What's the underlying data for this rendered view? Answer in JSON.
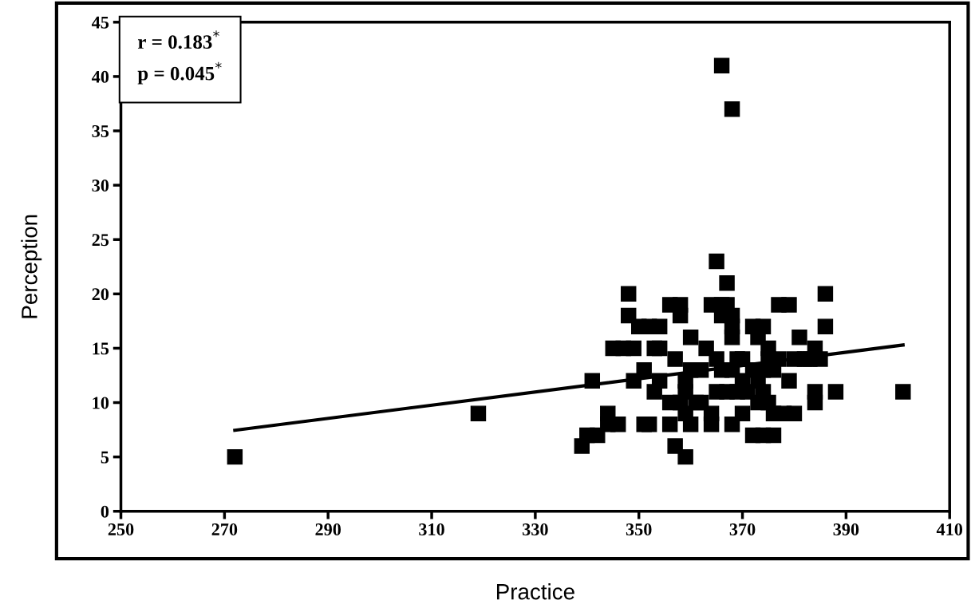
{
  "chart_data": {
    "type": "scatter",
    "xlabel": "Practice",
    "ylabel": "Perception",
    "annotations": [
      "r = 0.183$^{*}$\np = 0.045$^{*}$"
    ],
    "xlim": [
      250,
      410
    ],
    "xticks": [
      250,
      270,
      290,
      310,
      330,
      350,
      370,
      390,
      410
    ],
    "ylim": [
      0,
      45
    ],
    "yticks": [
      0,
      5,
      10,
      15,
      20,
      25,
      30,
      35,
      40,
      45
    ],
    "grid": false,
    "legend": false,
    "marker": "square",
    "series": [
      {
        "color": "#000000",
        "x": [
          272,
          319,
          339,
          340,
          341,
          342,
          344,
          344,
          345,
          346,
          347,
          348,
          348,
          349,
          349,
          350,
          351,
          351,
          352,
          352,
          353,
          353,
          354,
          354,
          354,
          356,
          356,
          356,
          357,
          357,
          358,
          358,
          358,
          359,
          359,
          359,
          359,
          360,
          360,
          360,
          361,
          362,
          362,
          363,
          364,
          364,
          364,
          365,
          365,
          365,
          366,
          366,
          366,
          366,
          367,
          367,
          367,
          368,
          368,
          368,
          368,
          368,
          368,
          369,
          369,
          370,
          370,
          370,
          371,
          372,
          372,
          372,
          373,
          373,
          373,
          374,
          374,
          374,
          374,
          375,
          375,
          375,
          376,
          376,
          376,
          377,
          377,
          378,
          379,
          379,
          380,
          380,
          381,
          382,
          383,
          384,
          384,
          384,
          385,
          386,
          386,
          388,
          401
        ],
        "values": [
          5,
          9,
          6,
          7,
          12,
          7,
          8,
          9,
          15,
          8,
          15,
          20,
          18,
          12,
          15,
          17,
          8,
          13,
          8,
          17,
          11,
          15,
          12,
          17,
          15,
          19,
          10,
          8,
          14,
          6,
          19,
          18,
          10,
          12,
          11,
          9,
          5,
          16,
          13,
          8,
          10,
          13,
          10,
          15,
          19,
          9,
          8,
          23,
          14,
          11,
          41,
          19,
          13,
          18,
          21,
          19,
          11,
          37,
          18,
          16,
          17,
          8,
          13,
          14,
          11,
          12,
          14,
          9,
          11,
          17,
          13,
          7,
          16,
          10,
          12,
          17,
          13,
          11,
          7,
          15,
          10,
          14,
          7,
          13,
          9,
          19,
          14,
          9,
          19,
          12,
          14,
          9,
          16,
          14,
          14,
          15,
          11,
          10,
          14,
          20,
          17,
          11,
          11
        ]
      },
      {
        "type": "line",
        "color": "#000000",
        "marker": "none",
        "line_style": "solid",
        "x": [
          272,
          401
        ],
        "values": [
          7.45,
          15.3
        ]
      }
    ]
  }
}
